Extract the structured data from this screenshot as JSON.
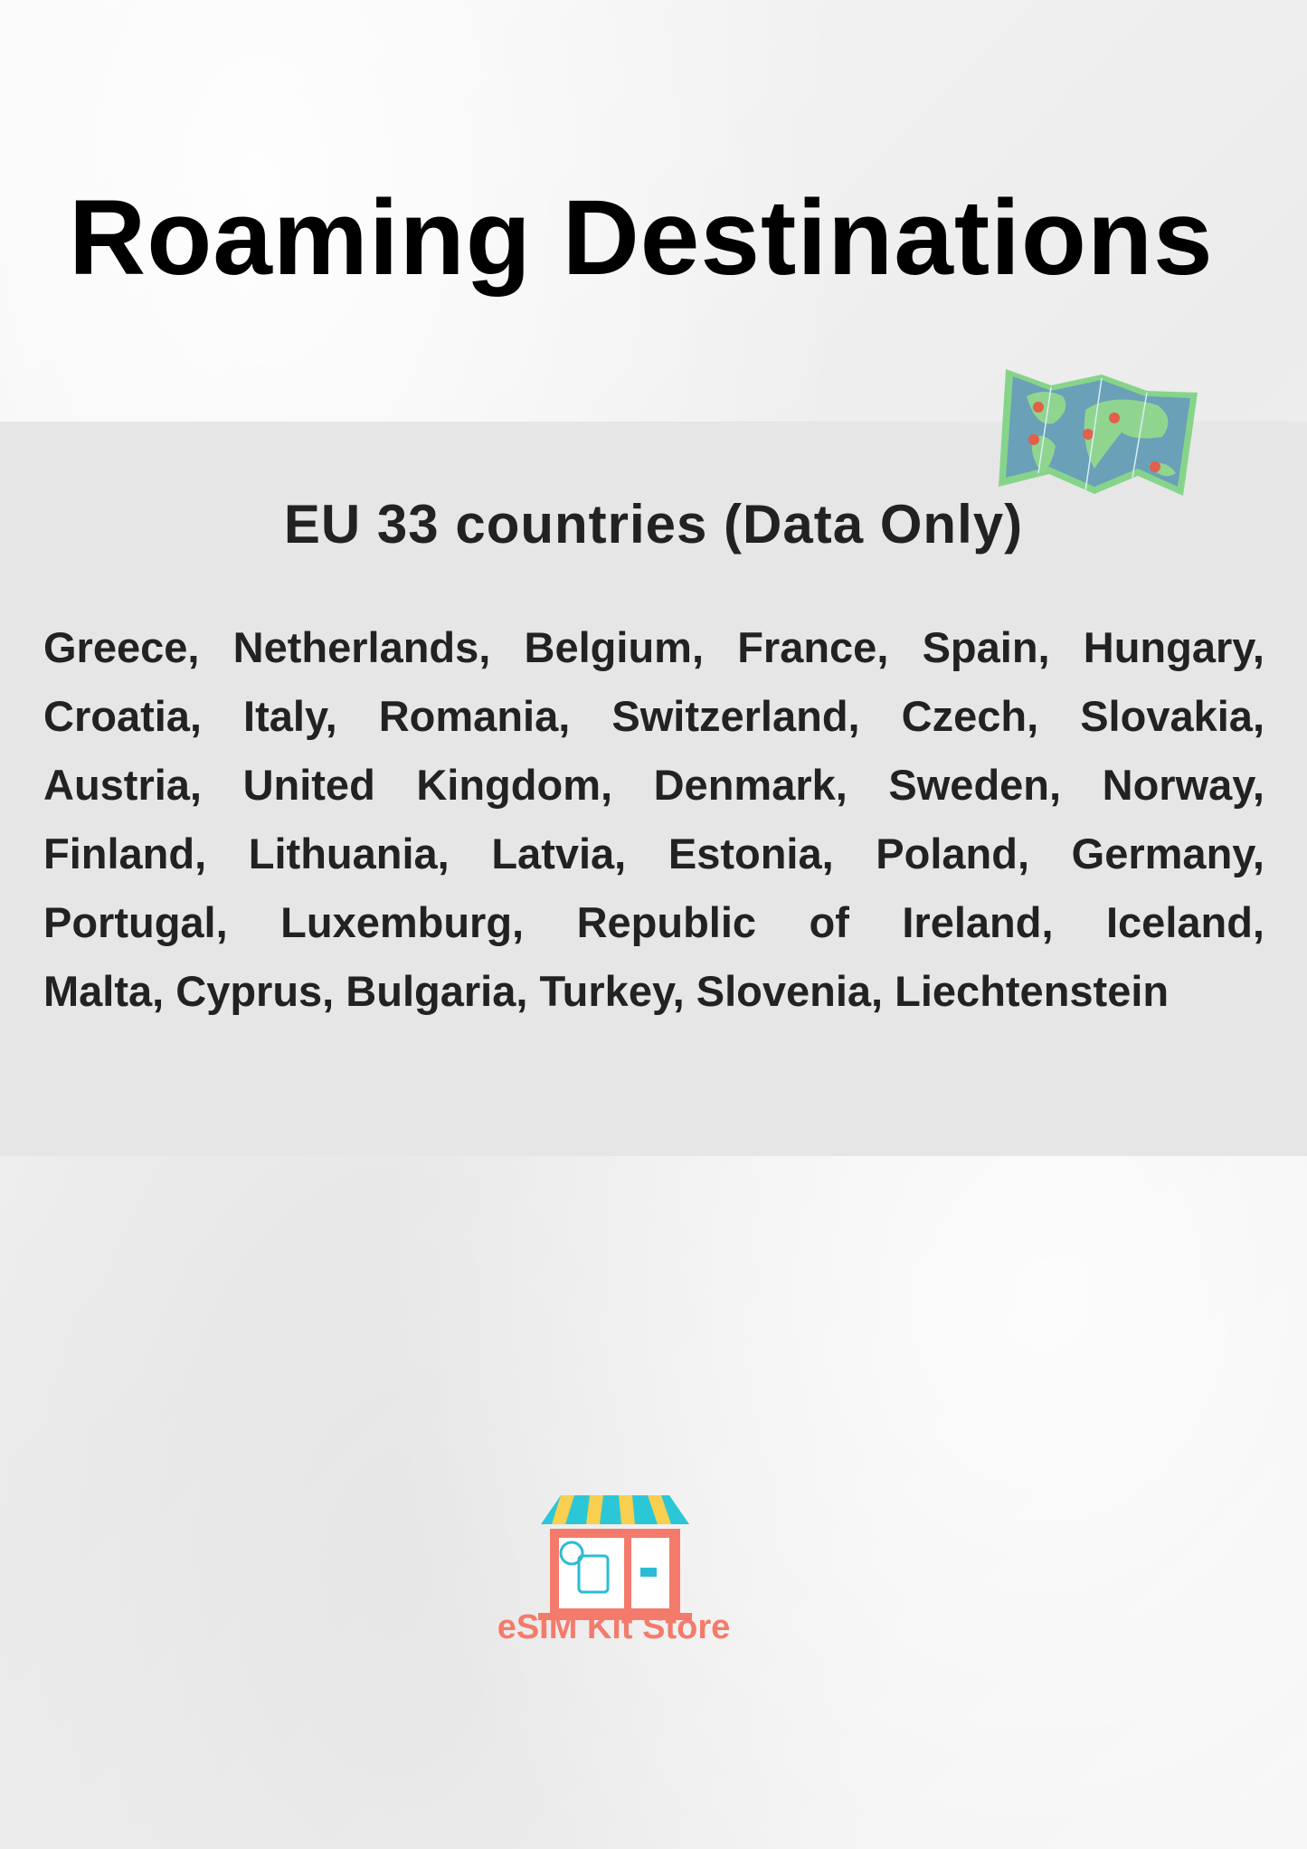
{
  "header": {
    "title": "Roaming Destinations"
  },
  "section": {
    "subtitle": "EU 33 countries (Data Only)",
    "country_lines": [
      "Greece, Netherlands, Belgium, France, Spain, Hungary,",
      "Croatia, Italy, Romania, Switzerland, Czech, Slovakia,",
      "Austria, United Kingdom, Denmark, Sweden, Norway,",
      "Finland, Lithuania, Latvia, Estonia, Poland, Germany,",
      "Portugal, Luxemburg, Republic of Ireland, Iceland,",
      "Malta, Cyprus, Bulgaria, Turkey, Slovenia, Liechtenstein"
    ],
    "map_icon": "world-map-icon"
  },
  "footer": {
    "brand": "eSIM Kit Store",
    "logo_icon": "storefront-icon",
    "brand_color": "#f47b6b"
  }
}
